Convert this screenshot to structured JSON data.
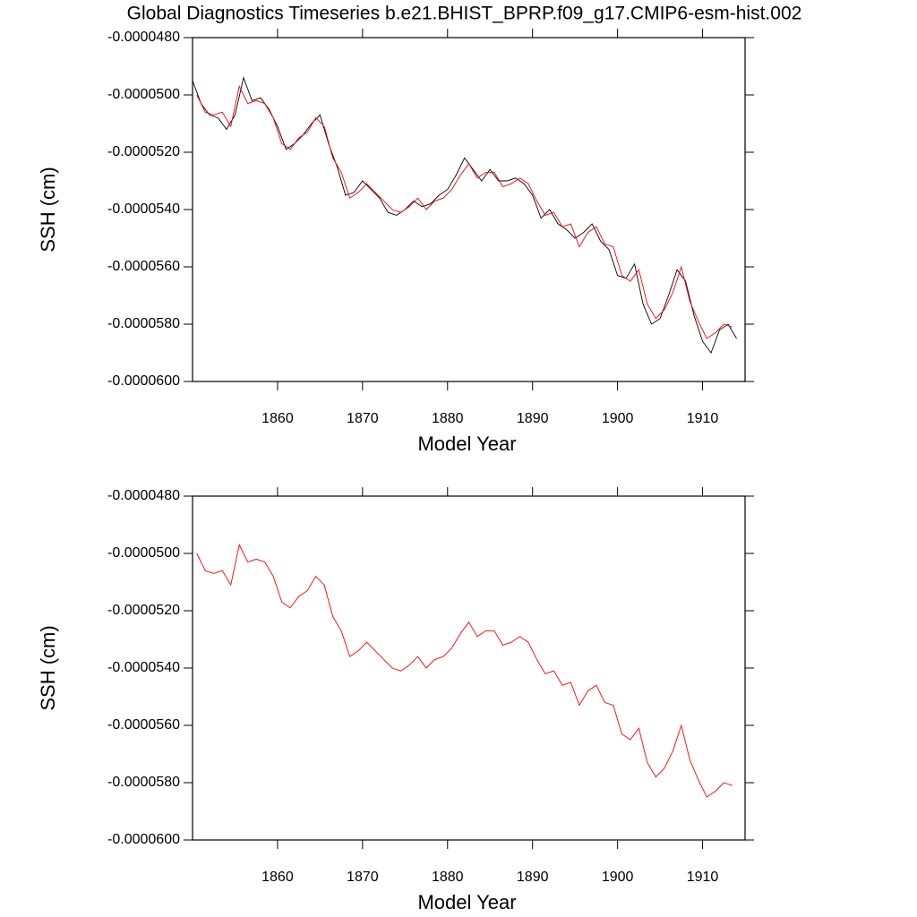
{
  "chart_data": [
    {
      "type": "line",
      "title": "Global Diagnostics Timeseries b.e21.BHIST_BPRP.f09_g17.CMIP6-esm-hist.002",
      "x_label": "Model Year",
      "y_label": "SSH (cm)",
      "xlim": [
        1850,
        1915
      ],
      "xticks": [
        1860,
        1870,
        1880,
        1890,
        1900,
        1910
      ],
      "ylim": [
        -6e-05,
        -4.8e-05
      ],
      "yticks": [
        {
          "value": -6e-05,
          "label": "-0.0000600"
        },
        {
          "value": -5.8e-05,
          "label": "-0.0000580"
        },
        {
          "value": -5.6e-05,
          "label": "-0.0000560"
        },
        {
          "value": -5.4e-05,
          "label": "-0.0000540"
        },
        {
          "value": -5.2e-05,
          "label": "-0.0000520"
        },
        {
          "value": -5e-05,
          "label": "-0.0000500"
        },
        {
          "value": -4.8e-05,
          "label": "-0.0000480"
        }
      ],
      "series": [
        {
          "color": "#000000",
          "x": [
            1850,
            1851,
            1852,
            1853,
            1854,
            1855,
            1856,
            1857,
            1858,
            1859,
            1860,
            1861,
            1862,
            1863,
            1864,
            1865,
            1866,
            1867,
            1868,
            1869,
            1870,
            1871,
            1872,
            1873,
            1874,
            1875,
            1876,
            1877,
            1878,
            1879,
            1880,
            1881,
            1882,
            1883,
            1884,
            1885,
            1886,
            1887,
            1888,
            1889,
            1890,
            1891,
            1892,
            1893,
            1894,
            1895,
            1896,
            1897,
            1898,
            1899,
            1900,
            1901,
            1902,
            1903,
            1904,
            1905,
            1906,
            1907,
            1908,
            1909,
            1910,
            1911,
            1912,
            1913,
            1914
          ],
          "values": [
            -4.95e-05,
            -5.03e-05,
            -5.07e-05,
            -5.08e-05,
            -5.12e-05,
            -5.07e-05,
            -4.94e-05,
            -5.02e-05,
            -5.01e-05,
            -5.05e-05,
            -5.11e-05,
            -5.19e-05,
            -5.17e-05,
            -5.14e-05,
            -5.1e-05,
            -5.07e-05,
            -5.17e-05,
            -5.25e-05,
            -5.35e-05,
            -5.34e-05,
            -5.3e-05,
            -5.33e-05,
            -5.36e-05,
            -5.41e-05,
            -5.42e-05,
            -5.4e-05,
            -5.37e-05,
            -5.39e-05,
            -5.38e-05,
            -5.35e-05,
            -5.33e-05,
            -5.28e-05,
            -5.22e-05,
            -5.26e-05,
            -5.3e-05,
            -5.26e-05,
            -5.3e-05,
            -5.3e-05,
            -5.29e-05,
            -5.31e-05,
            -5.35e-05,
            -5.43e-05,
            -5.4e-05,
            -5.45e-05,
            -5.47e-05,
            -5.5e-05,
            -5.48e-05,
            -5.45e-05,
            -5.51e-05,
            -5.54e-05,
            -5.63e-05,
            -5.64e-05,
            -5.59e-05,
            -5.73e-05,
            -5.8e-05,
            -5.78e-05,
            -5.7e-05,
            -5.61e-05,
            -5.65e-05,
            -5.77e-05,
            -5.86e-05,
            -5.9e-05,
            -5.82e-05,
            -5.8e-05,
            -5.85e-05
          ]
        },
        {
          "color": "#ff0000",
          "x": [
            1850.5,
            1851.5,
            1852.5,
            1853.5,
            1854.5,
            1855.5,
            1856.5,
            1857.5,
            1858.5,
            1859.5,
            1860.5,
            1861.5,
            1862.5,
            1863.5,
            1864.5,
            1865.5,
            1866.5,
            1867.5,
            1868.5,
            1869.5,
            1870.5,
            1871.5,
            1872.5,
            1873.5,
            1874.5,
            1875.5,
            1876.5,
            1877.5,
            1878.5,
            1879.5,
            1880.5,
            1881.5,
            1882.5,
            1883.5,
            1884.5,
            1885.5,
            1886.5,
            1887.5,
            1888.5,
            1889.5,
            1890.5,
            1891.5,
            1892.5,
            1893.5,
            1894.5,
            1895.5,
            1896.5,
            1897.5,
            1898.5,
            1899.5,
            1900.5,
            1901.5,
            1902.5,
            1903.5,
            1904.5,
            1905.5,
            1906.5,
            1907.5,
            1908.5,
            1909.5,
            1910.5,
            1911.5,
            1912.5,
            1913.5
          ],
          "values": [
            -5e-05,
            -5.06e-05,
            -5.07e-05,
            -5.06e-05,
            -5.11e-05,
            -4.97e-05,
            -5.03e-05,
            -5.02e-05,
            -5.03e-05,
            -5.08e-05,
            -5.17e-05,
            -5.19e-05,
            -5.15e-05,
            -5.13e-05,
            -5.08e-05,
            -5.11e-05,
            -5.22e-05,
            -5.27e-05,
            -5.36e-05,
            -5.34e-05,
            -5.31e-05,
            -5.34e-05,
            -5.37e-05,
            -5.4e-05,
            -5.41e-05,
            -5.39e-05,
            -5.36e-05,
            -5.4e-05,
            -5.37e-05,
            -5.36e-05,
            -5.33e-05,
            -5.28e-05,
            -5.24e-05,
            -5.29e-05,
            -5.27e-05,
            -5.27e-05,
            -5.32e-05,
            -5.31e-05,
            -5.29e-05,
            -5.31e-05,
            -5.37e-05,
            -5.42e-05,
            -5.41e-05,
            -5.46e-05,
            -5.45e-05,
            -5.53e-05,
            -5.48e-05,
            -5.46e-05,
            -5.52e-05,
            -5.53e-05,
            -5.63e-05,
            -5.65e-05,
            -5.61e-05,
            -5.73e-05,
            -5.78e-05,
            -5.75e-05,
            -5.69e-05,
            -5.6e-05,
            -5.72e-05,
            -5.79e-05,
            -5.85e-05,
            -5.83e-05,
            -5.8e-05,
            -5.81e-05
          ]
        }
      ]
    },
    {
      "type": "line",
      "x_label": "Model Year",
      "y_label": "SSH (cm)",
      "xlim": [
        1850,
        1915
      ],
      "xticks": [
        1860,
        1870,
        1880,
        1890,
        1900,
        1910
      ],
      "ylim": [
        -6e-05,
        -4.8e-05
      ],
      "yticks": [
        {
          "value": -6e-05,
          "label": "-0.0000600"
        },
        {
          "value": -5.8e-05,
          "label": "-0.0000580"
        },
        {
          "value": -5.6e-05,
          "label": "-0.0000560"
        },
        {
          "value": -5.4e-05,
          "label": "-0.0000540"
        },
        {
          "value": -5.2e-05,
          "label": "-0.0000520"
        },
        {
          "value": -5e-05,
          "label": "-0.0000500"
        },
        {
          "value": -4.8e-05,
          "label": "-0.0000480"
        }
      ],
      "series": [
        {
          "color": "#ff0000",
          "x": [
            1850.5,
            1851.5,
            1852.5,
            1853.5,
            1854.5,
            1855.5,
            1856.5,
            1857.5,
            1858.5,
            1859.5,
            1860.5,
            1861.5,
            1862.5,
            1863.5,
            1864.5,
            1865.5,
            1866.5,
            1867.5,
            1868.5,
            1869.5,
            1870.5,
            1871.5,
            1872.5,
            1873.5,
            1874.5,
            1875.5,
            1876.5,
            1877.5,
            1878.5,
            1879.5,
            1880.5,
            1881.5,
            1882.5,
            1883.5,
            1884.5,
            1885.5,
            1886.5,
            1887.5,
            1888.5,
            1889.5,
            1890.5,
            1891.5,
            1892.5,
            1893.5,
            1894.5,
            1895.5,
            1896.5,
            1897.5,
            1898.5,
            1899.5,
            1900.5,
            1901.5,
            1902.5,
            1903.5,
            1904.5,
            1905.5,
            1906.5,
            1907.5,
            1908.5,
            1909.5,
            1910.5,
            1911.5,
            1912.5,
            1913.5
          ],
          "values": [
            -5e-05,
            -5.06e-05,
            -5.07e-05,
            -5.06e-05,
            -5.11e-05,
            -4.97e-05,
            -5.03e-05,
            -5.02e-05,
            -5.03e-05,
            -5.08e-05,
            -5.17e-05,
            -5.19e-05,
            -5.15e-05,
            -5.13e-05,
            -5.08e-05,
            -5.11e-05,
            -5.22e-05,
            -5.27e-05,
            -5.36e-05,
            -5.34e-05,
            -5.31e-05,
            -5.34e-05,
            -5.37e-05,
            -5.4e-05,
            -5.41e-05,
            -5.39e-05,
            -5.36e-05,
            -5.4e-05,
            -5.37e-05,
            -5.36e-05,
            -5.33e-05,
            -5.28e-05,
            -5.24e-05,
            -5.29e-05,
            -5.27e-05,
            -5.27e-05,
            -5.32e-05,
            -5.31e-05,
            -5.29e-05,
            -5.31e-05,
            -5.37e-05,
            -5.42e-05,
            -5.41e-05,
            -5.46e-05,
            -5.45e-05,
            -5.53e-05,
            -5.48e-05,
            -5.46e-05,
            -5.52e-05,
            -5.53e-05,
            -5.63e-05,
            -5.65e-05,
            -5.61e-05,
            -5.73e-05,
            -5.78e-05,
            -5.75e-05,
            -5.69e-05,
            -5.6e-05,
            -5.72e-05,
            -5.79e-05,
            -5.85e-05,
            -5.83e-05,
            -5.8e-05,
            -5.81e-05
          ]
        }
      ]
    }
  ]
}
